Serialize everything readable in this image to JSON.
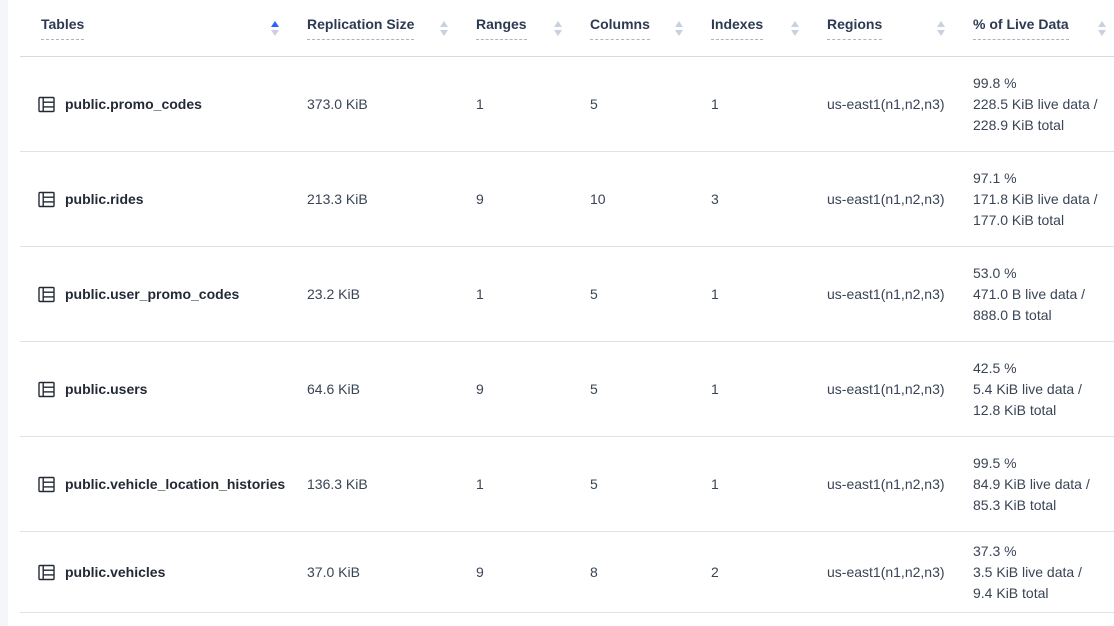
{
  "header": {
    "columns": [
      {
        "id": "tables",
        "label": "Tables",
        "sort": "asc"
      },
      {
        "id": "replication-size",
        "label": "Replication Size",
        "sort": "none"
      },
      {
        "id": "ranges",
        "label": "Ranges",
        "sort": "none"
      },
      {
        "id": "columns",
        "label": "Columns",
        "sort": "none"
      },
      {
        "id": "indexes",
        "label": "Indexes",
        "sort": "none"
      },
      {
        "id": "regions",
        "label": "Regions",
        "sort": "none"
      },
      {
        "id": "live-data",
        "label": "% of Live Data",
        "sort": "none"
      }
    ]
  },
  "rows": [
    {
      "name": "public.promo_codes",
      "replication_size": "373.0 KiB",
      "ranges": "1",
      "columns": "5",
      "indexes": "1",
      "regions": "us-east1(n1,n2,n3)",
      "live_pct": "99.8 %",
      "live_line1": "228.5 KiB live data /",
      "live_line2": "228.9 KiB total"
    },
    {
      "name": "public.rides",
      "replication_size": "213.3 KiB",
      "ranges": "9",
      "columns": "10",
      "indexes": "3",
      "regions": "us-east1(n1,n2,n3)",
      "live_pct": "97.1 %",
      "live_line1": "171.8 KiB live data /",
      "live_line2": "177.0 KiB total"
    },
    {
      "name": "public.user_promo_codes",
      "replication_size": "23.2 KiB",
      "ranges": "1",
      "columns": "5",
      "indexes": "1",
      "regions": "us-east1(n1,n2,n3)",
      "live_pct": "53.0 %",
      "live_line1": "471.0 B live data /",
      "live_line2": "888.0 B total"
    },
    {
      "name": "public.users",
      "replication_size": "64.6 KiB",
      "ranges": "9",
      "columns": "5",
      "indexes": "1",
      "regions": "us-east1(n1,n2,n3)",
      "live_pct": "42.5 %",
      "live_line1": "5.4 KiB live data /",
      "live_line2": "12.8 KiB total"
    },
    {
      "name": "public.vehicle_location_histories",
      "replication_size": "136.3 KiB",
      "ranges": "1",
      "columns": "5",
      "indexes": "1",
      "regions": "us-east1(n1,n2,n3)",
      "live_pct": "99.5 %",
      "live_line1": "84.9 KiB live data /",
      "live_line2": "85.3 KiB total"
    },
    {
      "name": "public.vehicles",
      "replication_size": "37.0 KiB",
      "ranges": "9",
      "columns": "8",
      "indexes": "2",
      "regions": "us-east1(n1,n2,n3)",
      "live_pct": "37.3 %",
      "live_line1": "3.5 KiB live data /",
      "live_line2": "9.4 KiB total"
    }
  ],
  "icons": {
    "table": "table-grid-icon",
    "sort_up": "caret-up-icon",
    "sort_down": "caret-down-icon"
  },
  "colors": {
    "sort_active": "#2962ff",
    "sort_inactive": "#c9d1e0",
    "text": "#394455",
    "name_text": "#242a35",
    "row_border": "#dde3ea",
    "header_border": "#d6dce5",
    "dashed_underline": "#a9b4c6",
    "left_strip": "#f4f6fa"
  }
}
